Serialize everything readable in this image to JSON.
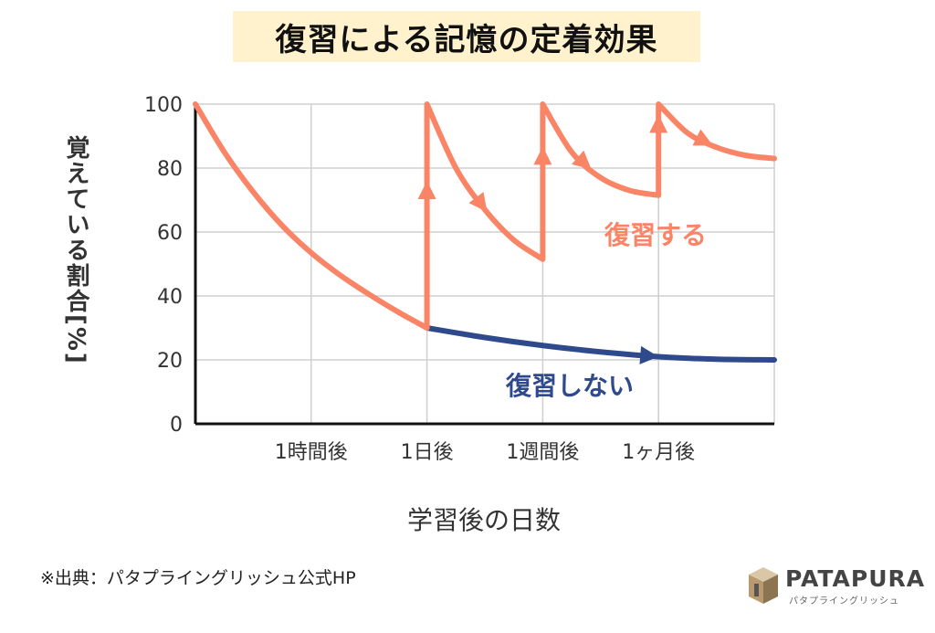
{
  "title": "復習による記憶の定着効果",
  "source_note": "※出典：パタプライングリッシュ公式HP",
  "logo": {
    "name": "PATAPURA",
    "sub": "パタプライングリッシュ"
  },
  "colors": {
    "review": "#f98466",
    "no_review": "#2f4a8c",
    "grid": "#cfcfcf",
    "axis": "#111111",
    "title_bg": "#fff2cc"
  },
  "chart_data": {
    "type": "line",
    "title": "復習による記憶の定着効果",
    "xlabel": "学習後の日数",
    "ylabel": "覚えている割合[%]",
    "ylim": [
      0,
      100
    ],
    "yticks": [
      0,
      20,
      40,
      60,
      80,
      100
    ],
    "xlim": [
      0,
      5
    ],
    "xticks": [
      {
        "x": 1,
        "label": "1時間後"
      },
      {
        "x": 2,
        "label": "1日後"
      },
      {
        "x": 3,
        "label": "1週間後"
      },
      {
        "x": 4,
        "label": "1ヶ月後"
      }
    ],
    "grid": true,
    "series": [
      {
        "name": "復習しない",
        "points": [
          [
            2.0,
            30
          ],
          [
            2.5,
            27
          ],
          [
            3.0,
            24.5
          ],
          [
            3.5,
            22.5
          ],
          [
            4.0,
            21
          ],
          [
            4.5,
            20.2
          ],
          [
            5.0,
            20
          ]
        ]
      },
      {
        "name": "復習する",
        "points": [
          [
            0.0,
            100
          ],
          [
            0.25,
            85
          ],
          [
            0.5,
            72.5
          ],
          [
            0.75,
            62
          ],
          [
            1.0,
            53.5
          ],
          [
            1.25,
            46.5
          ],
          [
            1.5,
            40.5
          ],
          [
            1.75,
            35
          ],
          [
            2.0,
            30
          ],
          [
            2.0,
            100
          ],
          [
            2.25,
            80
          ],
          [
            2.5,
            67
          ],
          [
            2.75,
            57.5
          ],
          [
            3.0,
            51.5
          ],
          [
            3.0,
            100
          ],
          [
            3.25,
            85
          ],
          [
            3.5,
            77
          ],
          [
            3.75,
            73
          ],
          [
            4.0,
            71.5
          ],
          [
            4.0,
            100
          ],
          [
            4.25,
            91
          ],
          [
            4.5,
            86.5
          ],
          [
            4.75,
            84
          ],
          [
            5.0,
            83
          ]
        ]
      }
    ],
    "series_labels": {
      "review": "復習する",
      "no_review": "復習しない"
    }
  }
}
